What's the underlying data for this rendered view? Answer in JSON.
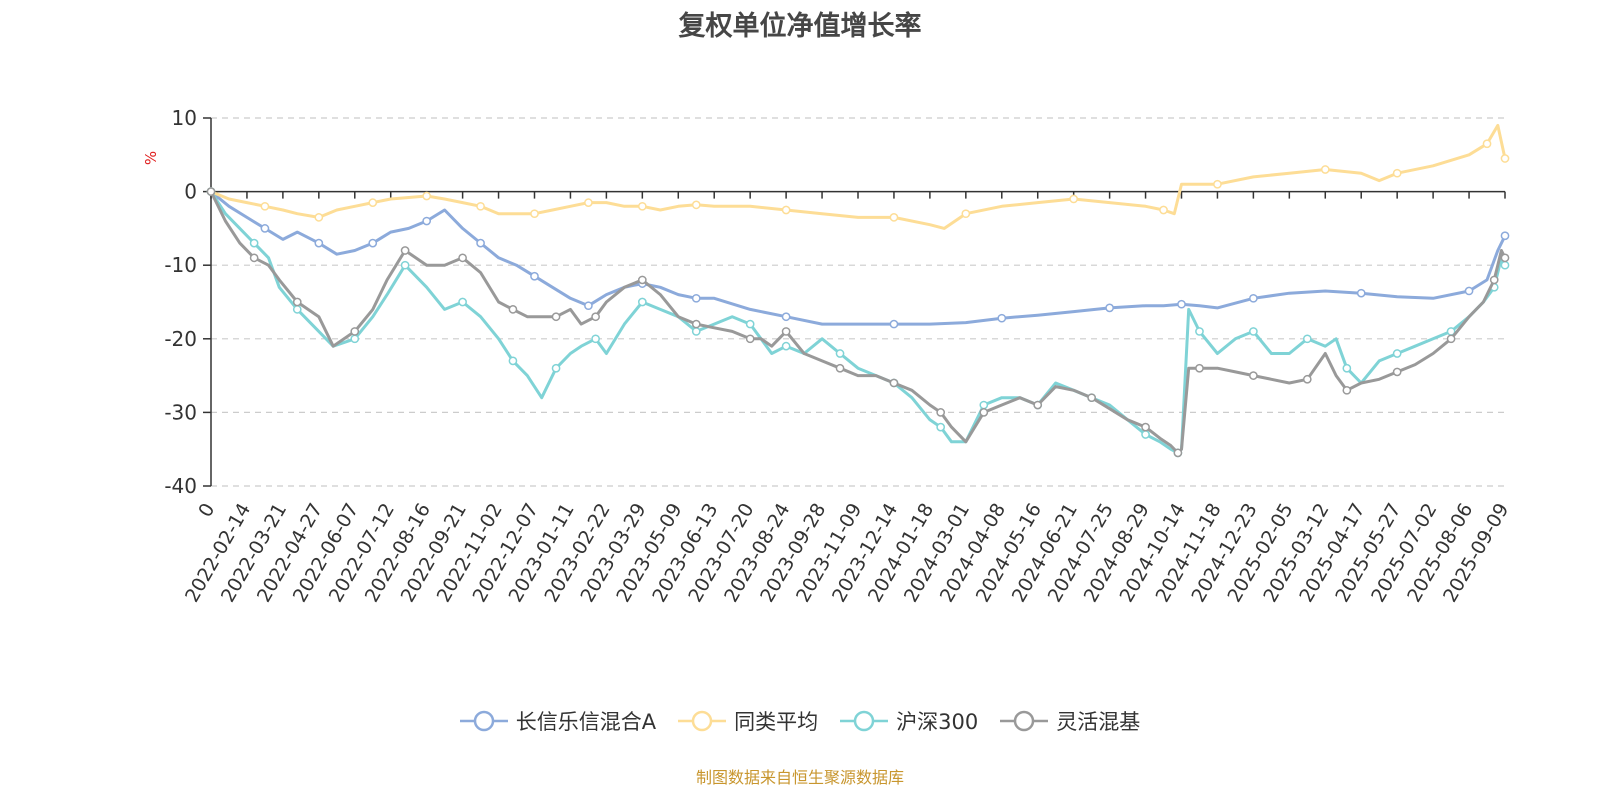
{
  "chart_data": {
    "type": "line",
    "title": "复权单位净值增长率",
    "ylabel": "%",
    "ylim": [
      -40,
      10
    ],
    "yticks": [
      10,
      0,
      -10,
      -20,
      -30,
      -40
    ],
    "grid": true,
    "legend_position": "bottom",
    "x_tick_labels": [
      "0",
      "2022-02-14",
      "2022-03-21",
      "2022-04-27",
      "2022-06-07",
      "2022-07-12",
      "2022-08-16",
      "2022-09-21",
      "2022-11-02",
      "2022-12-07",
      "2023-01-11",
      "2023-02-22",
      "2023-03-29",
      "2023-05-09",
      "2023-06-13",
      "2023-07-20",
      "2023-08-24",
      "2023-09-28",
      "2023-11-09",
      "2023-12-14",
      "2024-01-18",
      "2024-03-01",
      "2024-04-08",
      "2024-05-16",
      "2024-06-21",
      "2024-07-25",
      "2024-08-29",
      "2024-10-14",
      "2024-11-18",
      "2024-12-23",
      "2025-02-05",
      "2025-03-12",
      "2025-04-17",
      "2025-05-27",
      "2025-07-02",
      "2025-08-06",
      "2025-09-09"
    ],
    "x_range": [
      0,
      36
    ],
    "series": [
      {
        "name": "长信乐信混合A",
        "color": "#8caadb",
        "x": [
          0,
          0.5,
          1,
          1.5,
          2,
          2.4,
          3,
          3.5,
          4,
          4.5,
          5,
          5.5,
          6,
          6.5,
          7,
          7.5,
          8,
          8.5,
          9,
          9.5,
          10,
          10.5,
          11,
          11.5,
          12,
          12.5,
          13,
          13.5,
          14,
          15,
          16,
          17,
          18,
          19,
          20,
          21,
          22,
          23,
          24,
          25,
          26,
          26.5,
          27,
          27.5,
          28,
          29,
          30,
          31,
          32,
          33,
          34,
          35,
          35.5,
          35.8,
          36
        ],
        "y": [
          0,
          -2,
          -3.5,
          -5,
          -6.5,
          -5.5,
          -7,
          -8.5,
          -8,
          -7,
          -5.5,
          -5,
          -4,
          -2.5,
          -5,
          -7,
          -9,
          -10,
          -11.5,
          -13,
          -14.5,
          -15.5,
          -14,
          -13,
          -12.5,
          -13,
          -14,
          -14.5,
          -14.5,
          -16,
          -17,
          -18,
          -18,
          -18,
          -18,
          -17.8,
          -17.2,
          -16.8,
          -16.3,
          -15.8,
          -15.5,
          -15.5,
          -15.3,
          -15.5,
          -15.8,
          -14.5,
          -13.8,
          -13.5,
          -13.8,
          -14.3,
          -14.5,
          -13.5,
          -12,
          -8,
          -6
        ]
      },
      {
        "name": "同类平均",
        "color": "#fddd96",
        "x": [
          0,
          0.5,
          1,
          1.5,
          2,
          2.4,
          3,
          3.5,
          4,
          4.5,
          5,
          5.5,
          6,
          6.5,
          7,
          7.5,
          8,
          8.5,
          9,
          9.5,
          10,
          10.5,
          11,
          11.5,
          12,
          12.5,
          13,
          13.5,
          14,
          15,
          16,
          17,
          18,
          19,
          20,
          20.4,
          21,
          22,
          23,
          24,
          25,
          26,
          26.5,
          26.8,
          27,
          28,
          29,
          30,
          31,
          32,
          32.5,
          33,
          34,
          35,
          35.5,
          35.8,
          36
        ],
        "y": [
          0,
          -1,
          -1.5,
          -2,
          -2.5,
          -3,
          -3.5,
          -2.5,
          -2,
          -1.5,
          -1,
          -0.8,
          -0.6,
          -1,
          -1.5,
          -2,
          -3,
          -3,
          -3,
          -2.5,
          -2,
          -1.5,
          -1.5,
          -2,
          -2,
          -2.5,
          -2,
          -1.8,
          -2,
          -2,
          -2.5,
          -3,
          -3.5,
          -3.5,
          -4.5,
          -5,
          -3,
          -2,
          -1.5,
          -1,
          -1.5,
          -2,
          -2.5,
          -3,
          1,
          1,
          2,
          2.5,
          3,
          2.5,
          1.5,
          2.5,
          3.5,
          5,
          6.5,
          9,
          4.5
        ]
      },
      {
        "name": "沪深300",
        "color": "#7fd3d6",
        "x": [
          0,
          0.4,
          0.8,
          1.2,
          1.6,
          1.9,
          2.4,
          3,
          3.4,
          4,
          4.5,
          4.9,
          5.4,
          6,
          6.5,
          7,
          7.5,
          8,
          8.4,
          8.8,
          9.2,
          9.6,
          10,
          10.3,
          10.7,
          11,
          11.5,
          12,
          12.5,
          13,
          13.5,
          14,
          14.5,
          15,
          15.3,
          15.6,
          16,
          16.5,
          17,
          17.5,
          18,
          18.5,
          19,
          19.5,
          20,
          20.3,
          20.6,
          21,
          21.5,
          22,
          22.5,
          23,
          23.5,
          24,
          24.5,
          25,
          25.5,
          26,
          26.4,
          26.7,
          26.9,
          27,
          27.2,
          27.5,
          28,
          28.5,
          29,
          29.5,
          30,
          30.5,
          31,
          31.3,
          31.6,
          32,
          32.5,
          33,
          33.5,
          34,
          34.5,
          35,
          35.4,
          35.7,
          35.9,
          36
        ],
        "y": [
          0,
          -3,
          -5,
          -7,
          -9,
          -13,
          -16,
          -19,
          -21,
          -20,
          -17,
          -14,
          -10,
          -13,
          -16,
          -15,
          -17,
          -20,
          -23,
          -25,
          -28,
          -24,
          -22,
          -21,
          -20,
          -22,
          -18,
          -15,
          -16,
          -17,
          -19,
          -18,
          -17,
          -18,
          -20,
          -22,
          -21,
          -22,
          -20,
          -22,
          -24,
          -25,
          -26,
          -28,
          -31,
          -32,
          -34,
          -34,
          -29,
          -28,
          -28,
          -29,
          -26,
          -27,
          -28,
          -29,
          -31,
          -33,
          -34,
          -35,
          -35.5,
          -35,
          -16,
          -19,
          -22,
          -20,
          -19,
          -22,
          -22,
          -20,
          -21,
          -20,
          -24,
          -26,
          -23,
          -22,
          -21,
          -20,
          -19,
          -17,
          -15,
          -13,
          -9,
          -10
        ]
      },
      {
        "name": "灵活混基",
        "color": "#999999",
        "x": [
          0,
          0.4,
          0.8,
          1.2,
          1.6,
          1.9,
          2.4,
          3,
          3.4,
          4,
          4.5,
          4.9,
          5.4,
          6,
          6.5,
          7,
          7.5,
          8,
          8.4,
          8.8,
          9.2,
          9.6,
          10,
          10.3,
          10.7,
          11,
          11.5,
          12,
          12.5,
          13,
          13.5,
          14,
          14.5,
          15,
          15.3,
          15.6,
          16,
          16.5,
          17,
          17.5,
          18,
          18.5,
          19,
          19.5,
          20,
          20.3,
          20.6,
          21,
          21.5,
          22,
          22.5,
          23,
          23.5,
          24,
          24.5,
          25,
          25.5,
          26,
          26.4,
          26.7,
          26.9,
          27,
          27.2,
          27.5,
          28,
          28.5,
          29,
          29.5,
          30,
          30.5,
          31,
          31.3,
          31.6,
          32,
          32.5,
          33,
          33.5,
          34,
          34.5,
          35,
          35.4,
          35.7,
          35.9,
          36
        ],
        "y": [
          0,
          -4,
          -7,
          -9,
          -10,
          -12,
          -15,
          -17,
          -21,
          -19,
          -16,
          -12,
          -8,
          -10,
          -10,
          -9,
          -11,
          -15,
          -16,
          -17,
          -17,
          -17,
          -16,
          -18,
          -17,
          -15,
          -13,
          -12,
          -14,
          -17,
          -18,
          -18.5,
          -19,
          -20,
          -20,
          -21,
          -19,
          -22,
          -23,
          -24,
          -25,
          -25,
          -26,
          -27,
          -29,
          -30,
          -32,
          -34,
          -30,
          -29,
          -28,
          -29,
          -26.5,
          -27,
          -28,
          -29.5,
          -31,
          -32,
          -33.5,
          -34.5,
          -35.5,
          -35,
          -24,
          -24,
          -24,
          -24.5,
          -25,
          -25.5,
          -26,
          -25.5,
          -22,
          -25,
          -27,
          -26,
          -25.5,
          -24.5,
          -23.5,
          -22,
          -20,
          -17,
          -15,
          -12,
          -8,
          -9
        ]
      }
    ]
  },
  "source_note": "制图数据来自恒生聚源数据库"
}
